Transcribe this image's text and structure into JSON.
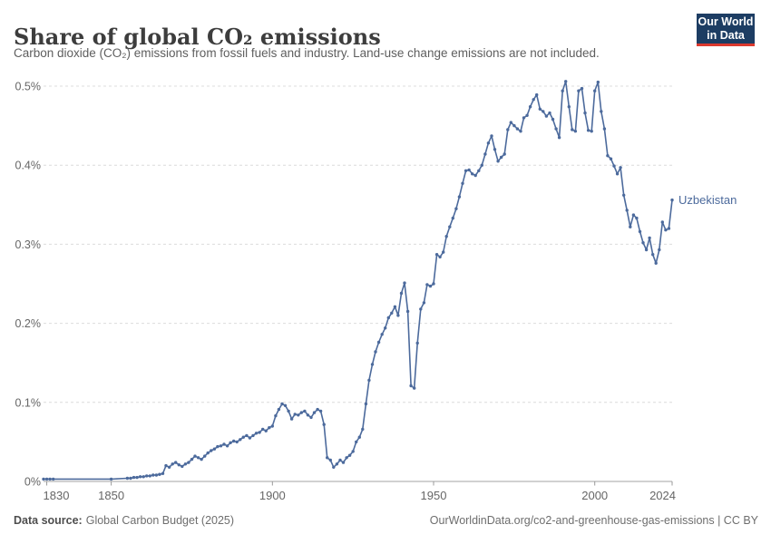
{
  "header": {
    "title": "Share of global CO₂ emissions",
    "subtitle": "Carbon dioxide (CO₂) emissions from fossil fuels and industry. Land-use change emissions are not included."
  },
  "logo": {
    "line1": "Our World",
    "line2": "in Data",
    "bg_color": "#1d3d63",
    "accent_color": "#dc392e"
  },
  "footer": {
    "source_label": "Data source:",
    "source_value": "Global Carbon Budget (2025)",
    "url_text": "OurWorldinData.org/co2-and-greenhouse-gas-emissions | CC BY"
  },
  "chart_data": {
    "type": "line",
    "title": "Share of global CO₂ emissions",
    "unit": "%",
    "entity_label": "Uzbekistan",
    "line_color": "#4c6a9c",
    "grid": "horizontal-dashed",
    "legend_position": "end-of-line-label",
    "xlim": [
      1829,
      2024
    ],
    "ylim": [
      0,
      0.5
    ],
    "x_ticks": [
      1830,
      1850,
      1900,
      1950,
      2000,
      2024
    ],
    "y_ticks": [
      {
        "value": 0,
        "label": "0%"
      },
      {
        "value": 0.1,
        "label": "0.1%"
      },
      {
        "value": 0.2,
        "label": "0.2%"
      },
      {
        "value": 0.3,
        "label": "0.3%"
      },
      {
        "value": 0.4,
        "label": "0.4%"
      },
      {
        "value": 0.5,
        "label": "0.5%"
      }
    ],
    "series": [
      {
        "name": "Uzbekistan",
        "points": [
          [
            1829,
            0.003
          ],
          [
            1830,
            0.003
          ],
          [
            1831,
            0.003
          ],
          [
            1832,
            0.003
          ],
          [
            1850,
            0.003
          ],
          [
            1855,
            0.004
          ],
          [
            1856,
            0.004
          ],
          [
            1857,
            0.005
          ],
          [
            1858,
            0.005
          ],
          [
            1859,
            0.006
          ],
          [
            1860,
            0.006
          ],
          [
            1861,
            0.007
          ],
          [
            1862,
            0.007
          ],
          [
            1863,
            0.008
          ],
          [
            1864,
            0.008
          ],
          [
            1865,
            0.009
          ],
          [
            1866,
            0.01
          ],
          [
            1867,
            0.02
          ],
          [
            1868,
            0.018
          ],
          [
            1869,
            0.022
          ],
          [
            1870,
            0.024
          ],
          [
            1871,
            0.021
          ],
          [
            1872,
            0.019
          ],
          [
            1873,
            0.022
          ],
          [
            1874,
            0.024
          ],
          [
            1875,
            0.028
          ],
          [
            1876,
            0.032
          ],
          [
            1877,
            0.03
          ],
          [
            1878,
            0.028
          ],
          [
            1879,
            0.032
          ],
          [
            1880,
            0.036
          ],
          [
            1881,
            0.039
          ],
          [
            1882,
            0.041
          ],
          [
            1883,
            0.044
          ],
          [
            1884,
            0.045
          ],
          [
            1885,
            0.047
          ],
          [
            1886,
            0.045
          ],
          [
            1887,
            0.049
          ],
          [
            1888,
            0.051
          ],
          [
            1889,
            0.05
          ],
          [
            1890,
            0.053
          ],
          [
            1891,
            0.056
          ],
          [
            1892,
            0.058
          ],
          [
            1893,
            0.055
          ],
          [
            1894,
            0.058
          ],
          [
            1895,
            0.061
          ],
          [
            1896,
            0.062
          ],
          [
            1897,
            0.066
          ],
          [
            1898,
            0.064
          ],
          [
            1899,
            0.068
          ],
          [
            1900,
            0.07
          ],
          [
            1901,
            0.083
          ],
          [
            1902,
            0.091
          ],
          [
            1903,
            0.098
          ],
          [
            1904,
            0.096
          ],
          [
            1905,
            0.089
          ],
          [
            1906,
            0.079
          ],
          [
            1907,
            0.085
          ],
          [
            1908,
            0.084
          ],
          [
            1909,
            0.087
          ],
          [
            1910,
            0.089
          ],
          [
            1911,
            0.084
          ],
          [
            1912,
            0.081
          ],
          [
            1913,
            0.087
          ],
          [
            1914,
            0.091
          ],
          [
            1915,
            0.089
          ],
          [
            1916,
            0.072
          ],
          [
            1917,
            0.03
          ],
          [
            1918,
            0.027
          ],
          [
            1919,
            0.018
          ],
          [
            1920,
            0.022
          ],
          [
            1921,
            0.027
          ],
          [
            1922,
            0.024
          ],
          [
            1923,
            0.03
          ],
          [
            1924,
            0.033
          ],
          [
            1925,
            0.038
          ],
          [
            1926,
            0.05
          ],
          [
            1927,
            0.056
          ],
          [
            1928,
            0.066
          ],
          [
            1929,
            0.098
          ],
          [
            1930,
            0.128
          ],
          [
            1931,
            0.148
          ],
          [
            1932,
            0.164
          ],
          [
            1933,
            0.176
          ],
          [
            1934,
            0.186
          ],
          [
            1935,
            0.194
          ],
          [
            1936,
            0.207
          ],
          [
            1937,
            0.213
          ],
          [
            1938,
            0.221
          ],
          [
            1939,
            0.21
          ],
          [
            1940,
            0.238
          ],
          [
            1941,
            0.251
          ],
          [
            1942,
            0.215
          ],
          [
            1943,
            0.121
          ],
          [
            1944,
            0.118
          ],
          [
            1945,
            0.175
          ],
          [
            1946,
            0.218
          ],
          [
            1947,
            0.226
          ],
          [
            1948,
            0.249
          ],
          [
            1949,
            0.247
          ],
          [
            1950,
            0.25
          ],
          [
            1951,
            0.287
          ],
          [
            1952,
            0.284
          ],
          [
            1953,
            0.29
          ],
          [
            1954,
            0.31
          ],
          [
            1955,
            0.322
          ],
          [
            1956,
            0.333
          ],
          [
            1957,
            0.345
          ],
          [
            1958,
            0.36
          ],
          [
            1959,
            0.377
          ],
          [
            1960,
            0.393
          ],
          [
            1961,
            0.394
          ],
          [
            1962,
            0.389
          ],
          [
            1963,
            0.387
          ],
          [
            1964,
            0.393
          ],
          [
            1965,
            0.4
          ],
          [
            1966,
            0.414
          ],
          [
            1967,
            0.428
          ],
          [
            1968,
            0.437
          ],
          [
            1969,
            0.42
          ],
          [
            1970,
            0.405
          ],
          [
            1971,
            0.41
          ],
          [
            1972,
            0.414
          ],
          [
            1973,
            0.445
          ],
          [
            1974,
            0.454
          ],
          [
            1975,
            0.45
          ],
          [
            1976,
            0.446
          ],
          [
            1977,
            0.443
          ],
          [
            1978,
            0.46
          ],
          [
            1979,
            0.463
          ],
          [
            1980,
            0.474
          ],
          [
            1981,
            0.483
          ],
          [
            1982,
            0.489
          ],
          [
            1983,
            0.471
          ],
          [
            1984,
            0.468
          ],
          [
            1985,
            0.462
          ],
          [
            1986,
            0.466
          ],
          [
            1987,
            0.458
          ],
          [
            1988,
            0.446
          ],
          [
            1989,
            0.435
          ],
          [
            1990,
            0.494
          ],
          [
            1991,
            0.506
          ],
          [
            1992,
            0.474
          ],
          [
            1993,
            0.445
          ],
          [
            1994,
            0.443
          ],
          [
            1995,
            0.494
          ],
          [
            1996,
            0.497
          ],
          [
            1997,
            0.466
          ],
          [
            1998,
            0.444
          ],
          [
            1999,
            0.443
          ],
          [
            2000,
            0.494
          ],
          [
            2001,
            0.505
          ],
          [
            2002,
            0.468
          ],
          [
            2003,
            0.446
          ],
          [
            2004,
            0.412
          ],
          [
            2005,
            0.408
          ],
          [
            2006,
            0.399
          ],
          [
            2007,
            0.389
          ],
          [
            2008,
            0.397
          ],
          [
            2009,
            0.362
          ],
          [
            2010,
            0.343
          ],
          [
            2011,
            0.322
          ],
          [
            2012,
            0.337
          ],
          [
            2013,
            0.333
          ],
          [
            2014,
            0.316
          ],
          [
            2015,
            0.302
          ],
          [
            2016,
            0.293
          ],
          [
            2017,
            0.308
          ],
          [
            2018,
            0.287
          ],
          [
            2019,
            0.276
          ],
          [
            2020,
            0.293
          ],
          [
            2021,
            0.328
          ],
          [
            2022,
            0.318
          ],
          [
            2023,
            0.32
          ],
          [
            2024,
            0.356
          ]
        ]
      }
    ]
  },
  "style_colors": {
    "grid_color": "#dcdcdc",
    "axis_color": "#a3a3a3",
    "tick_color": "#999999",
    "axis_label_color": "#666666"
  }
}
